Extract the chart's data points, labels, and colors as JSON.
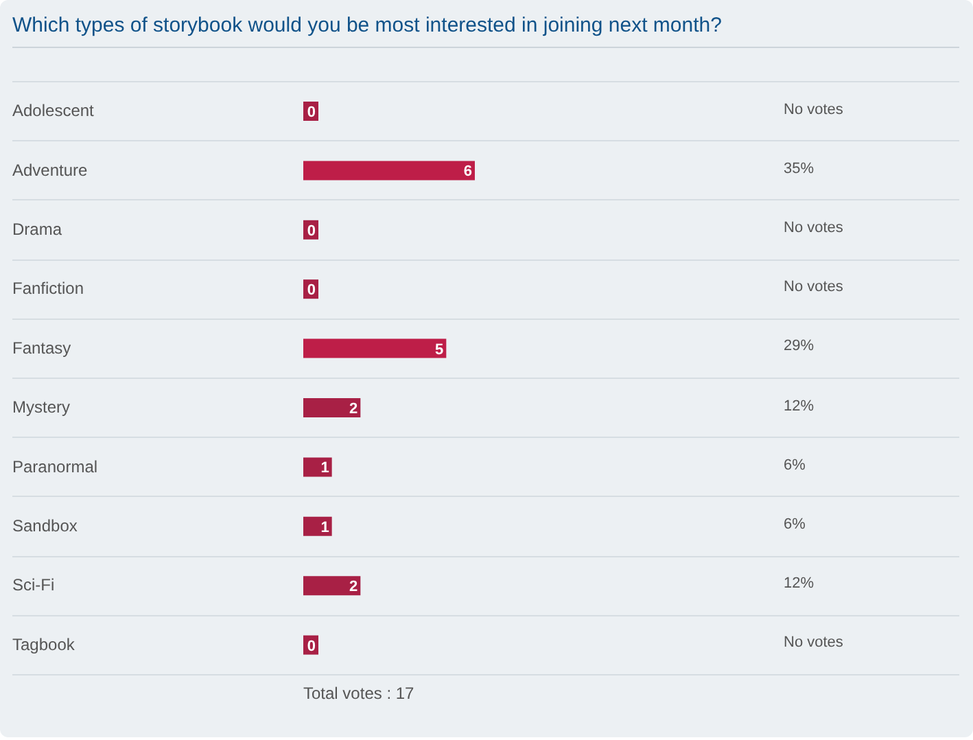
{
  "chart_data": {
    "type": "bar",
    "orientation": "horizontal",
    "title": "Which types of storybook would you be most interested in joining next month?",
    "categories": [
      "Adolescent",
      "Adventure",
      "Drama",
      "Fanfiction",
      "Fantasy",
      "Mystery",
      "Paranormal",
      "Sandbox",
      "Sci-Fi",
      "Tagbook"
    ],
    "values": [
      0,
      6,
      0,
      0,
      5,
      2,
      1,
      1,
      2,
      0
    ],
    "colors": [
      "#a82045",
      "#be1e48",
      "#a82045",
      "#a82045",
      "#be1e48",
      "#a82045",
      "#a82045",
      "#a82045",
      "#a82045",
      "#a82045"
    ],
    "data_labels": true,
    "annotations": [
      "No votes",
      "35%",
      "No votes",
      "No votes",
      "29%",
      "12%",
      "6%",
      "6%",
      "12%",
      "No votes",
      "Total votes : 17"
    ]
  }
}
